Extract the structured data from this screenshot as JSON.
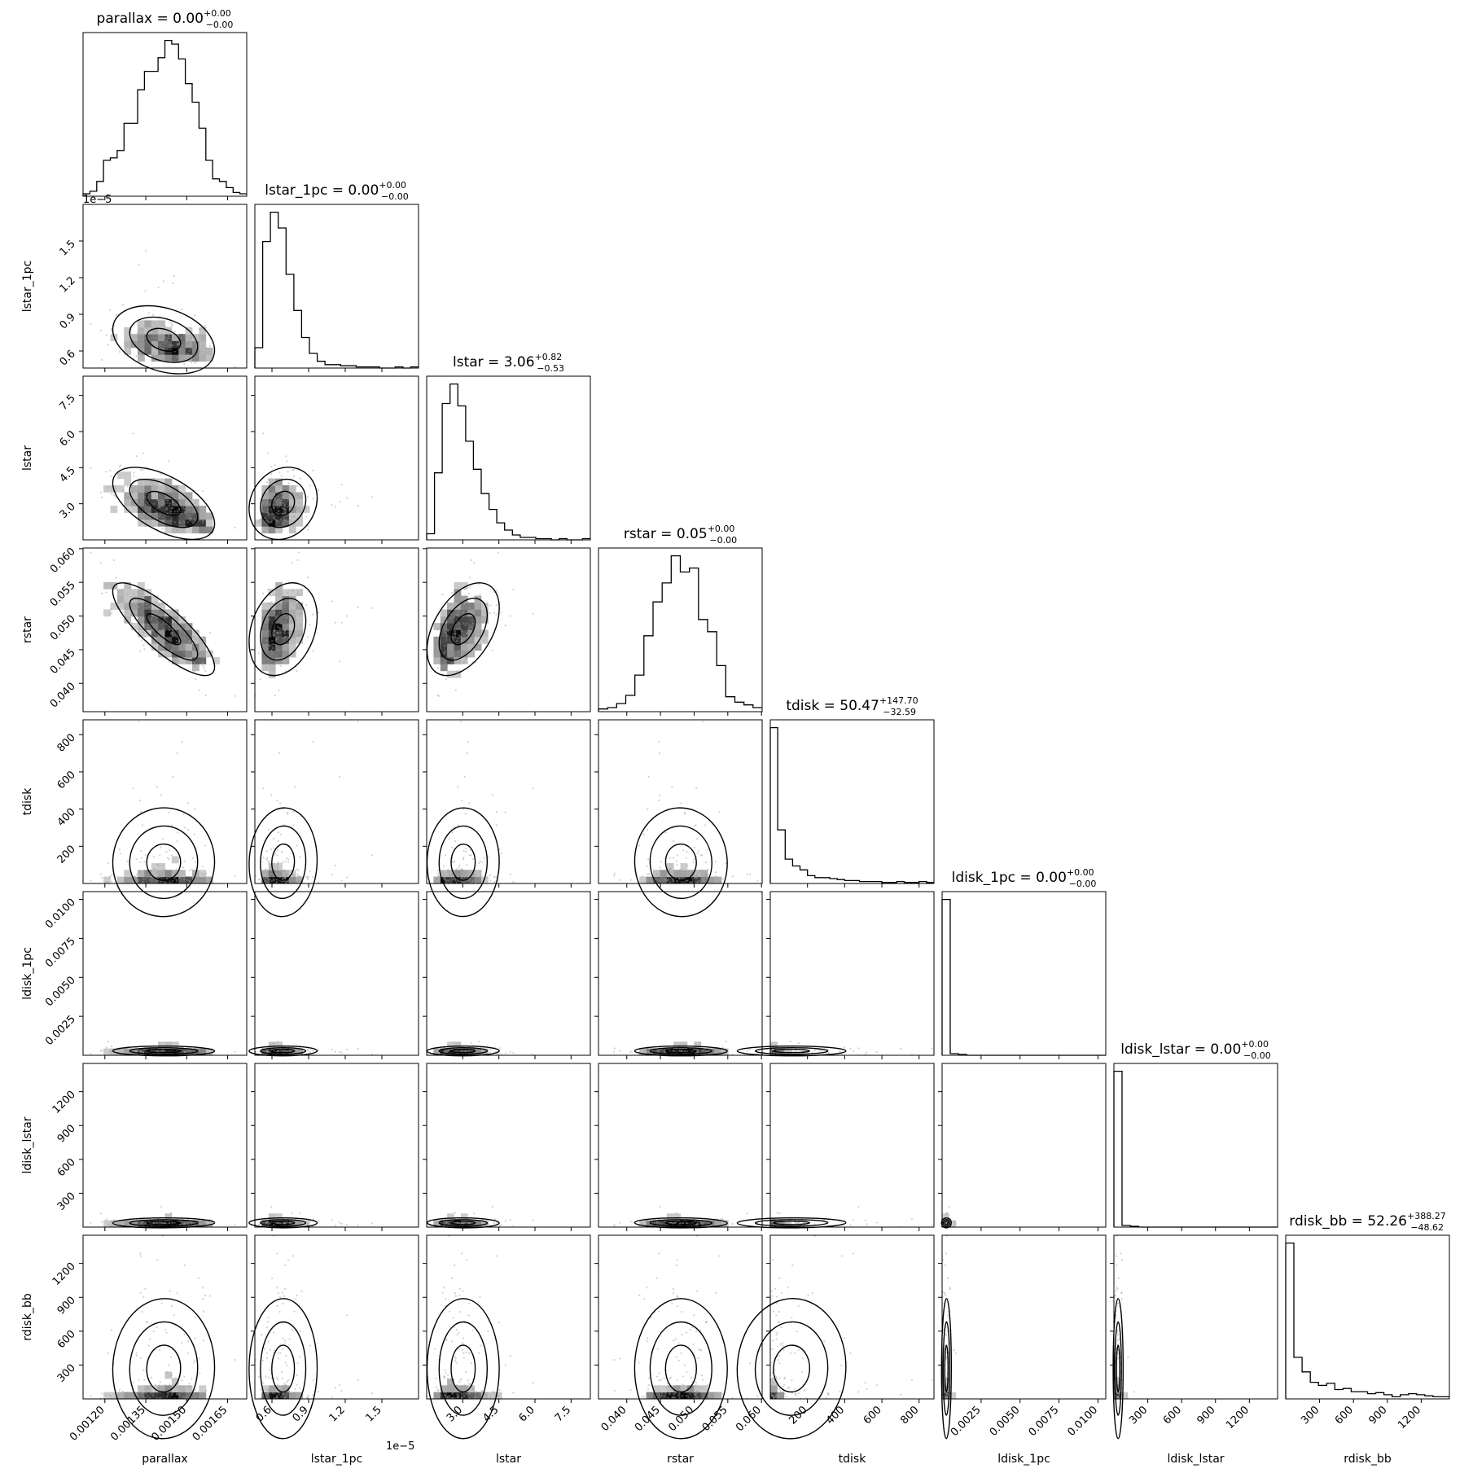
{
  "chart_data": {
    "type": "corner",
    "parameters": [
      {
        "name": "parallax",
        "range": [
          0.00112,
          0.00172
        ],
        "ticks": [
          0.0012,
          0.00135,
          0.0015,
          0.00165
        ],
        "tick_labels": [
          "0.00120",
          "0.00135",
          "0.00150",
          "0.00165"
        ],
        "offset": "",
        "title": {
          "main": "parallax = 0.00",
          "up": "+0.00",
          "down": "−0.00"
        },
        "hist": [
          2,
          4,
          12,
          29,
          31,
          37,
          59,
          59,
          86,
          101,
          101,
          112,
          126,
          123,
          111,
          91,
          76,
          55,
          29,
          14,
          12,
          7,
          3,
          2
        ]
      },
      {
        "name": "lstar_1pc",
        "range": [
          4.6e-06,
          1.8e-05
        ],
        "ticks": [
          6e-06,
          9e-06,
          1.2e-05,
          1.5e-05
        ],
        "tick_labels": [
          "0.6",
          "0.9",
          "1.2",
          "1.5"
        ],
        "offset": "1e−5",
        "title": {
          "main": "lstar_1pc = 0.00",
          "up": "+0.00",
          "down": "−0.00"
        },
        "hist": [
          18,
          112,
          138,
          124,
          83,
          51,
          27,
          13,
          6,
          3,
          3,
          2,
          2,
          1,
          1,
          1,
          0,
          0,
          1,
          0,
          1
        ]
      },
      {
        "name": "lstar",
        "range": [
          1.5,
          8.3
        ],
        "ticks": [
          3.0,
          4.5,
          6.0,
          7.5
        ],
        "tick_labels": [
          "3.0",
          "4.5",
          "6.0",
          "7.5"
        ],
        "offset": "",
        "title": {
          "main": "lstar = 3.06",
          "up": "+0.82",
          "down": "−0.53"
        },
        "hist": [
          5,
          55,
          112,
          128,
          110,
          81,
          58,
          38,
          25,
          14,
          8,
          4,
          2,
          2,
          1,
          1,
          0,
          1,
          0,
          0,
          1
        ]
      },
      {
        "name": "rstar",
        "range": [
          0.0358,
          0.0601
        ],
        "ticks": [
          0.04,
          0.045,
          0.05,
          0.055,
          0.06
        ],
        "tick_labels": [
          "0.040",
          "0.045",
          "0.050",
          "0.055",
          "0.060"
        ],
        "offset": "",
        "title": {
          "main": "rstar = 0.05",
          "up": "+0.00",
          "down": "−0.00"
        },
        "hist": [
          2,
          3,
          6,
          12,
          27,
          56,
          81,
          95,
          115,
          103,
          106,
          68,
          59,
          34,
          11,
          7,
          5,
          3
        ]
      },
      {
        "name": "tdisk",
        "range": [
          0,
          880
        ],
        "ticks": [
          200,
          400,
          600,
          800
        ],
        "tick_labels": [
          "200",
          "400",
          "600",
          "800"
        ],
        "offset": "",
        "title": {
          "main": "tdisk = 50.47",
          "up": "+147.70",
          "down": "−32.59"
        },
        "hist": [
          160,
          55,
          25,
          18,
          14,
          8,
          6,
          6,
          5,
          4,
          3,
          3,
          2,
          2,
          2,
          1,
          1,
          2,
          1,
          1,
          2,
          1
        ]
      },
      {
        "name": "ldisk_1pc",
        "range": [
          0,
          0.0105
        ],
        "ticks": [
          0.0025,
          0.005,
          0.0075,
          0.01
        ],
        "tick_labels": [
          "0.0025",
          "0.0050",
          "0.0075",
          "0.0100"
        ],
        "offset": "",
        "title": {
          "main": "ldisk_1pc = 0.00",
          "up": "+0.00",
          "down": "−0.00"
        },
        "hist": [
          190,
          2,
          1,
          0,
          0,
          0,
          0,
          0,
          0,
          0,
          0,
          0,
          0,
          0,
          0,
          0,
          0,
          0,
          0,
          0
        ]
      },
      {
        "name": "ldisk_lstar",
        "range": [
          0,
          1450
        ],
        "ticks": [
          300,
          600,
          900,
          1200
        ],
        "tick_labels": [
          "300",
          "600",
          "900",
          "1200"
        ],
        "offset": "",
        "title": {
          "main": "ldisk_lstar = 0.00",
          "up": "+0.00",
          "down": "−0.00"
        },
        "hist": [
          190,
          2,
          1,
          0,
          0,
          0,
          0,
          0,
          0,
          0,
          0,
          0,
          0,
          0,
          0,
          0,
          0,
          0,
          0,
          0
        ]
      },
      {
        "name": "rdisk_bb",
        "range": [
          0,
          1450
        ],
        "ticks": [
          300,
          600,
          900,
          1200
        ],
        "tick_labels": [
          "300",
          "600",
          "900",
          "1200"
        ],
        "offset": "",
        "title": {
          "main": "rdisk_bb = 52.26",
          "up": "+388.27",
          "down": "−48.62"
        },
        "hist": [
          150,
          40,
          26,
          16,
          13,
          15,
          9,
          10,
          7,
          7,
          5,
          6,
          4,
          2,
          4,
          5,
          4,
          3,
          2,
          2
        ]
      }
    ],
    "correlations": [
      [
        1.0,
        -0.3,
        -0.55,
        -0.82,
        0.0,
        0.0,
        0.0,
        0.0
      ],
      [
        -0.3,
        1.0,
        0.85,
        -0.5,
        0.0,
        0.0,
        0.0,
        0.0
      ],
      [
        -0.55,
        0.85,
        1.0,
        0.1,
        0.0,
        0.0,
        0.0,
        0.0
      ],
      [
        -0.82,
        -0.5,
        0.1,
        1.0,
        0.0,
        0.0,
        0.0,
        0.0
      ],
      [
        0.0,
        0.0,
        0.0,
        0.0,
        1.0,
        0.0,
        0.0,
        0.0
      ],
      [
        0.0,
        0.0,
        0.0,
        0.0,
        0.0,
        1.0,
        0.0,
        0.0
      ],
      [
        0.0,
        0.0,
        0.0,
        0.0,
        0.0,
        0.0,
        1.0,
        0.0
      ],
      [
        0.0,
        0.0,
        0.0,
        0.0,
        0.0,
        0.0,
        0.0,
        1.0
      ]
    ],
    "grid": false,
    "legend": "none"
  }
}
